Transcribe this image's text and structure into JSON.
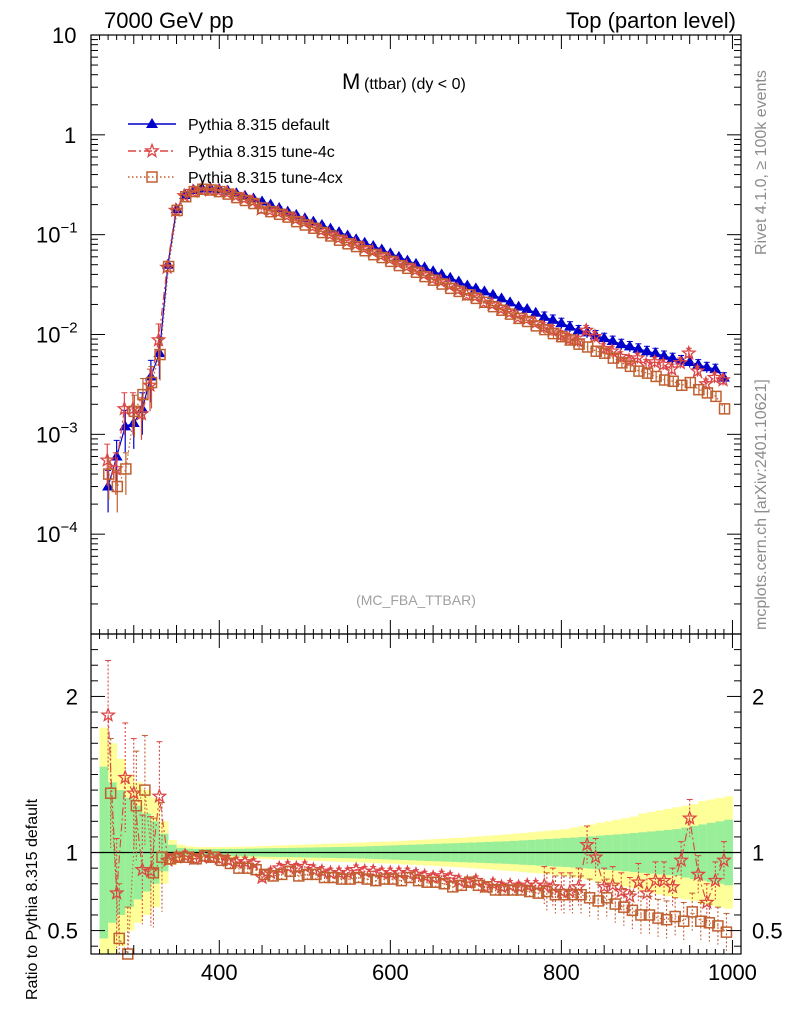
{
  "header": {
    "left": "7000 GeV pp",
    "right": "Top (parton level)"
  },
  "side_labels": {
    "rivet": "Rivet 4.1.0, ≥ 100k events",
    "mcplots": "mcplots.cern.ch [arXiv:2401.10621]"
  },
  "colors": {
    "default": "#0000cc",
    "tune4c": "#dd4444",
    "tune4cx": "#c06030",
    "band_yellow": "#ffff99",
    "band_green": "#99ee99"
  },
  "chart_data": [
    {
      "type": "line",
      "title": "M",
      "title_sub": "(ttbar) (dy < 0)",
      "watermark": "(MC_FBA_TTBAR)",
      "xlim": [
        250,
        1010
      ],
      "yscale": "log",
      "ylim": [
        1e-05,
        10
      ],
      "ytick_labels": [
        {
          "value": 10,
          "base": "10",
          "exp": ""
        },
        {
          "value": 1,
          "base": "1",
          "exp": ""
        },
        {
          "value": 0.1,
          "base": "10",
          "exp": "−1"
        },
        {
          "value": 0.01,
          "base": "10",
          "exp": "−2"
        },
        {
          "value": 0.001,
          "base": "10",
          "exp": "−3"
        },
        {
          "value": 0.0001,
          "base": "10",
          "exp": "−4"
        }
      ],
      "legend": [
        {
          "label": "Pythia 8.315 default",
          "marker": "triangle",
          "style": "solid"
        },
        {
          "label": "Pythia 8.315 tune-4c",
          "marker": "star",
          "style": "dashdot"
        },
        {
          "label": "Pythia 8.315 tune-4cx",
          "marker": "square",
          "style": "dotted"
        }
      ],
      "x": [
        270,
        280,
        290,
        300,
        310,
        320,
        330,
        340,
        350,
        360,
        370,
        380,
        390,
        400,
        410,
        420,
        430,
        440,
        450,
        460,
        470,
        480,
        490,
        500,
        510,
        520,
        530,
        540,
        550,
        560,
        570,
        580,
        590,
        600,
        610,
        620,
        630,
        640,
        650,
        660,
        670,
        680,
        690,
        700,
        710,
        720,
        730,
        740,
        750,
        760,
        770,
        780,
        790,
        800,
        810,
        820,
        830,
        840,
        850,
        860,
        870,
        880,
        890,
        900,
        910,
        920,
        930,
        940,
        950,
        960,
        970,
        980,
        990
      ],
      "series": [
        {
          "name": "Pythia 8.315 default",
          "values": [
            0.0003,
            0.0006,
            0.0012,
            0.0013,
            0.0018,
            0.0038,
            0.0065,
            0.05,
            0.18,
            0.25,
            0.28,
            0.29,
            0.29,
            0.285,
            0.275,
            0.26,
            0.245,
            0.23,
            0.215,
            0.2,
            0.185,
            0.17,
            0.158,
            0.146,
            0.135,
            0.125,
            0.115,
            0.106,
            0.098,
            0.09,
            0.083,
            0.077,
            0.071,
            0.065,
            0.06,
            0.055,
            0.051,
            0.047,
            0.043,
            0.04,
            0.037,
            0.034,
            0.031,
            0.029,
            0.027,
            0.025,
            0.023,
            0.021,
            0.019,
            0.018,
            0.0165,
            0.015,
            0.014,
            0.013,
            0.012,
            0.011,
            0.0105,
            0.0098,
            0.0092,
            0.0086,
            0.008,
            0.0076,
            0.0072,
            0.0068,
            0.0065,
            0.0061,
            0.0058,
            0.0055,
            0.0053,
            0.005,
            0.0047,
            0.0045,
            0.0037
          ]
        },
        {
          "name": "Pythia 8.315 tune-4c",
          "values": [
            0.00055,
            0.00045,
            0.0018,
            0.0018,
            0.0016,
            0.0031,
            0.0088,
            0.047,
            0.175,
            0.245,
            0.27,
            0.28,
            0.28,
            0.275,
            0.263,
            0.245,
            0.23,
            0.215,
            0.18,
            0.175,
            0.168,
            0.155,
            0.143,
            0.133,
            0.12,
            0.11,
            0.1,
            0.092,
            0.085,
            0.08,
            0.073,
            0.068,
            0.062,
            0.057,
            0.052,
            0.048,
            0.044,
            0.04,
            0.036,
            0.034,
            0.031,
            0.028,
            0.025,
            0.024,
            0.021,
            0.02,
            0.018,
            0.0165,
            0.0148,
            0.0142,
            0.013,
            0.0118,
            0.011,
            0.0098,
            0.009,
            0.0086,
            0.011,
            0.0095,
            0.0072,
            0.0068,
            0.006,
            0.0055,
            0.0058,
            0.005,
            0.0053,
            0.005,
            0.0045,
            0.0052,
            0.0065,
            0.0043,
            0.0032,
            0.0037,
            0.0035
          ]
        },
        {
          "name": "Pythia 8.315 tune-4cx",
          "values": [
            0.0004,
            0.0003,
            0.00045,
            0.0017,
            0.0025,
            0.0033,
            0.0063,
            0.048,
            0.175,
            0.24,
            0.27,
            0.285,
            0.28,
            0.27,
            0.255,
            0.235,
            0.22,
            0.205,
            0.185,
            0.17,
            0.16,
            0.15,
            0.135,
            0.125,
            0.116,
            0.105,
            0.097,
            0.088,
            0.081,
            0.076,
            0.069,
            0.063,
            0.059,
            0.054,
            0.049,
            0.046,
            0.042,
            0.038,
            0.035,
            0.032,
            0.029,
            0.027,
            0.025,
            0.023,
            0.021,
            0.019,
            0.0175,
            0.016,
            0.0145,
            0.0135,
            0.0122,
            0.0112,
            0.0102,
            0.0095,
            0.0088,
            0.008,
            0.0075,
            0.0068,
            0.0065,
            0.0058,
            0.0052,
            0.0048,
            0.0043,
            0.0041,
            0.0038,
            0.0035,
            0.0034,
            0.0031,
            0.0033,
            0.0028,
            0.0026,
            0.0024,
            0.0018
          ]
        }
      ]
    },
    {
      "type": "line",
      "ylabel": "Ratio to Pythia 8.315 default",
      "xlim": [
        250,
        1010
      ],
      "ylim": [
        0.35,
        2.4
      ],
      "reference": 1.0,
      "xtick_labels": [
        {
          "value": 400,
          "label": "400"
        },
        {
          "value": 600,
          "label": "600"
        },
        {
          "value": 800,
          "label": "800"
        },
        {
          "value": 1000,
          "label": "1000"
        }
      ],
      "ytick_labels": [
        {
          "value": 0.5,
          "label": "0.5"
        },
        {
          "value": 1,
          "label": "1"
        },
        {
          "value": 2,
          "label": "2"
        }
      ],
      "band_x": [
        265,
        275,
        285,
        295,
        305,
        315,
        325,
        335,
        345,
        355,
        365,
        375,
        385,
        395,
        405,
        415,
        425,
        435,
        445,
        455,
        465,
        475,
        485,
        495,
        505,
        515,
        525,
        535,
        545,
        555,
        565,
        575,
        585,
        595,
        605,
        615,
        625,
        635,
        645,
        655,
        665,
        675,
        685,
        695,
        705,
        715,
        725,
        735,
        745,
        755,
        765,
        775,
        785,
        795,
        805,
        815,
        825,
        835,
        845,
        855,
        865,
        875,
        885,
        895,
        905,
        915,
        925,
        935,
        945,
        955,
        965,
        975,
        985,
        995
      ],
      "band_yellow_half": [
        0.8,
        0.7,
        0.6,
        0.5,
        0.45,
        0.4,
        0.35,
        0.2,
        0.08,
        0.05,
        0.04,
        0.035,
        0.035,
        0.035,
        0.035,
        0.036,
        0.037,
        0.038,
        0.04,
        0.042,
        0.044,
        0.046,
        0.048,
        0.05,
        0.052,
        0.054,
        0.056,
        0.058,
        0.06,
        0.062,
        0.064,
        0.066,
        0.068,
        0.07,
        0.072,
        0.075,
        0.078,
        0.081,
        0.084,
        0.087,
        0.09,
        0.093,
        0.096,
        0.1,
        0.104,
        0.108,
        0.112,
        0.116,
        0.12,
        0.125,
        0.13,
        0.135,
        0.14,
        0.145,
        0.15,
        0.16,
        0.17,
        0.18,
        0.19,
        0.2,
        0.21,
        0.22,
        0.23,
        0.25,
        0.26,
        0.27,
        0.28,
        0.29,
        0.3,
        0.31,
        0.33,
        0.34,
        0.35,
        0.36
      ],
      "band_green_half": [
        0.55,
        0.45,
        0.4,
        0.35,
        0.3,
        0.25,
        0.2,
        0.12,
        0.05,
        0.03,
        0.025,
        0.022,
        0.022,
        0.022,
        0.022,
        0.023,
        0.024,
        0.025,
        0.026,
        0.027,
        0.028,
        0.029,
        0.03,
        0.031,
        0.032,
        0.033,
        0.034,
        0.035,
        0.036,
        0.037,
        0.038,
        0.04,
        0.042,
        0.044,
        0.046,
        0.048,
        0.05,
        0.052,
        0.054,
        0.056,
        0.058,
        0.06,
        0.062,
        0.064,
        0.066,
        0.068,
        0.07,
        0.072,
        0.075,
        0.078,
        0.081,
        0.084,
        0.087,
        0.09,
        0.093,
        0.096,
        0.1,
        0.104,
        0.108,
        0.112,
        0.116,
        0.12,
        0.125,
        0.13,
        0.135,
        0.14,
        0.145,
        0.15,
        0.16,
        0.17,
        0.18,
        0.19,
        0.2,
        0.21
      ],
      "series": [
        {
          "name": "Pythia 8.315 tune-4c",
          "x": [
            270,
            280,
            290,
            300,
            310,
            320,
            330,
            340,
            350,
            360,
            370,
            380,
            390,
            400,
            410,
            420,
            430,
            440,
            450,
            460,
            470,
            480,
            490,
            500,
            510,
            520,
            530,
            540,
            550,
            560,
            570,
            580,
            590,
            600,
            610,
            620,
            630,
            640,
            650,
            660,
            670,
            680,
            690,
            700,
            710,
            720,
            730,
            740,
            750,
            760,
            770,
            780,
            790,
            800,
            810,
            820,
            830,
            840,
            850,
            860,
            870,
            880,
            890,
            900,
            910,
            920,
            930,
            940,
            950,
            960,
            970,
            980,
            990
          ],
          "values": [
            1.88,
            0.74,
            1.48,
            1.38,
            0.89,
            0.88,
            1.36,
            0.95,
            0.97,
            0.98,
            0.96,
            0.97,
            0.97,
            0.96,
            0.95,
            0.94,
            0.94,
            0.93,
            0.84,
            0.87,
            0.9,
            0.91,
            0.9,
            0.91,
            0.89,
            0.88,
            0.87,
            0.87,
            0.87,
            0.89,
            0.88,
            0.88,
            0.87,
            0.87,
            0.87,
            0.87,
            0.86,
            0.85,
            0.84,
            0.85,
            0.84,
            0.82,
            0.81,
            0.82,
            0.78,
            0.8,
            0.78,
            0.79,
            0.78,
            0.79,
            0.79,
            0.79,
            0.78,
            0.75,
            0.75,
            0.78,
            1.05,
            0.97,
            0.78,
            0.79,
            0.75,
            0.72,
            0.81,
            0.74,
            0.82,
            0.82,
            0.78,
            0.95,
            1.22,
            0.86,
            0.68,
            0.82,
            0.95
          ]
        },
        {
          "name": "Pythia 8.315 tune-4cx",
          "x": [
            273,
            283,
            293,
            303,
            313,
            323,
            333,
            343,
            353,
            363,
            373,
            383,
            393,
            403,
            413,
            423,
            433,
            443,
            453,
            463,
            473,
            483,
            493,
            503,
            513,
            523,
            533,
            543,
            553,
            563,
            573,
            583,
            593,
            603,
            613,
            623,
            633,
            643,
            653,
            663,
            673,
            683,
            693,
            703,
            713,
            723,
            733,
            743,
            753,
            763,
            773,
            783,
            793,
            803,
            813,
            823,
            833,
            843,
            853,
            863,
            873,
            883,
            893,
            903,
            913,
            923,
            933,
            943,
            953,
            963,
            973,
            983,
            993
          ],
          "values": [
            1.38,
            0.45,
            0.3,
            1.3,
            1.4,
            0.87,
            0.97,
            0.96,
            0.97,
            0.97,
            0.96,
            0.98,
            0.97,
            0.95,
            0.93,
            0.9,
            0.9,
            0.89,
            0.86,
            0.85,
            0.86,
            0.88,
            0.85,
            0.86,
            0.86,
            0.84,
            0.84,
            0.83,
            0.83,
            0.84,
            0.83,
            0.82,
            0.83,
            0.83,
            0.82,
            0.84,
            0.82,
            0.81,
            0.81,
            0.8,
            0.78,
            0.79,
            0.81,
            0.79,
            0.78,
            0.76,
            0.76,
            0.76,
            0.76,
            0.75,
            0.74,
            0.75,
            0.73,
            0.73,
            0.73,
            0.73,
            0.71,
            0.69,
            0.71,
            0.67,
            0.65,
            0.63,
            0.6,
            0.6,
            0.58,
            0.57,
            0.59,
            0.56,
            0.62,
            0.56,
            0.55,
            0.53,
            0.49
          ]
        }
      ]
    }
  ]
}
